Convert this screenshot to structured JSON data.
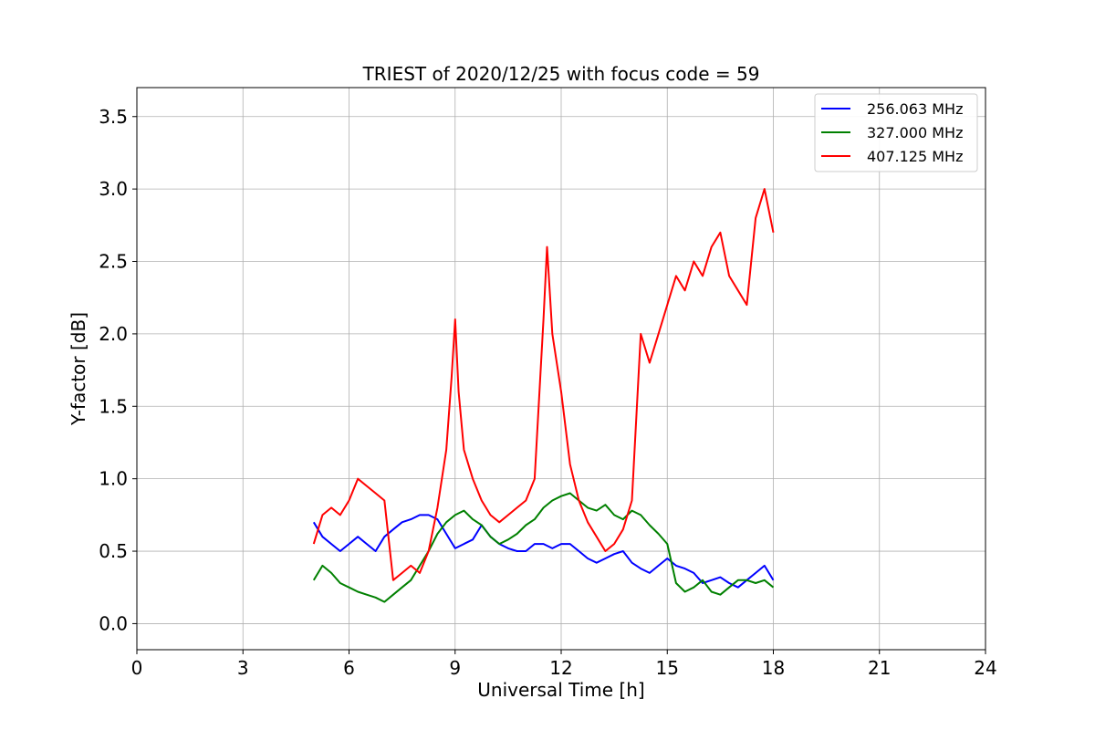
{
  "chart_data": {
    "type": "line",
    "title": "TRIEST of 2020/12/25 with focus code = 59",
    "xlabel": "Universal Time [h]",
    "ylabel": "Y-factor [dB]",
    "xlim": [
      0,
      24
    ],
    "ylim": [
      -0.18,
      3.7
    ],
    "xticks": [
      0,
      3,
      6,
      9,
      12,
      15,
      18,
      21,
      24
    ],
    "xtick_labels": [
      "0",
      "3",
      "6",
      "9",
      "12",
      "15",
      "18",
      "21",
      "24"
    ],
    "yticks": [
      0.0,
      0.5,
      1.0,
      1.5,
      2.0,
      2.5,
      3.0,
      3.5
    ],
    "ytick_labels": [
      "0.0",
      "0.5",
      "1.0",
      "1.5",
      "2.0",
      "2.5",
      "3.0",
      "3.5"
    ],
    "grid": true,
    "legend_position": "top-right",
    "series": [
      {
        "name": "256.063 MHz",
        "color": "#0000ff",
        "x": [
          5.0,
          5.25,
          5.5,
          5.75,
          6.0,
          6.25,
          6.5,
          6.75,
          7.0,
          7.25,
          7.5,
          7.75,
          8.0,
          8.25,
          8.5,
          8.75,
          9.0,
          9.25,
          9.5,
          9.75,
          10.0,
          10.25,
          10.5,
          10.75,
          11.0,
          11.25,
          11.5,
          11.75,
          12.0,
          12.25,
          12.5,
          12.75,
          13.0,
          13.25,
          13.5,
          13.75,
          14.0,
          14.25,
          14.5,
          14.75,
          15.0,
          15.25,
          15.5,
          15.75,
          16.0,
          16.25,
          16.5,
          16.75,
          17.0,
          17.25,
          17.5,
          17.75,
          18.0
        ],
        "y": [
          0.7,
          0.6,
          0.55,
          0.5,
          0.55,
          0.6,
          0.55,
          0.5,
          0.6,
          0.65,
          0.7,
          0.72,
          0.75,
          0.75,
          0.72,
          0.62,
          0.52,
          0.55,
          0.58,
          0.68,
          0.6,
          0.55,
          0.52,
          0.5,
          0.5,
          0.55,
          0.55,
          0.52,
          0.55,
          0.55,
          0.5,
          0.45,
          0.42,
          0.45,
          0.48,
          0.5,
          0.42,
          0.38,
          0.35,
          0.4,
          0.45,
          0.4,
          0.38,
          0.35,
          0.28,
          0.3,
          0.32,
          0.28,
          0.25,
          0.3,
          0.35,
          0.4,
          0.3
        ]
      },
      {
        "name": "327.000 MHz",
        "color": "#008000",
        "x": [
          5.0,
          5.25,
          5.5,
          5.75,
          6.0,
          6.25,
          6.5,
          6.75,
          7.0,
          7.25,
          7.5,
          7.75,
          8.0,
          8.25,
          8.5,
          8.75,
          9.0,
          9.25,
          9.5,
          9.75,
          10.0,
          10.25,
          10.5,
          10.75,
          11.0,
          11.25,
          11.5,
          11.75,
          12.0,
          12.25,
          12.5,
          12.75,
          13.0,
          13.25,
          13.5,
          13.75,
          14.0,
          14.25,
          14.5,
          14.75,
          15.0,
          15.25,
          15.5,
          15.75,
          16.0,
          16.25,
          16.5,
          16.75,
          17.0,
          17.25,
          17.5,
          17.75,
          18.0
        ],
        "y": [
          0.3,
          0.4,
          0.35,
          0.28,
          0.25,
          0.22,
          0.2,
          0.18,
          0.15,
          0.2,
          0.25,
          0.3,
          0.4,
          0.5,
          0.62,
          0.7,
          0.75,
          0.78,
          0.72,
          0.68,
          0.6,
          0.55,
          0.58,
          0.62,
          0.68,
          0.72,
          0.8,
          0.85,
          0.88,
          0.9,
          0.85,
          0.8,
          0.78,
          0.82,
          0.75,
          0.72,
          0.78,
          0.75,
          0.68,
          0.62,
          0.55,
          0.28,
          0.22,
          0.25,
          0.3,
          0.22,
          0.2,
          0.25,
          0.3,
          0.3,
          0.28,
          0.3,
          0.25
        ]
      },
      {
        "name": "407.125 MHz",
        "color": "#ff0000",
        "x": [
          5.0,
          5.25,
          5.5,
          5.75,
          6.0,
          6.25,
          6.5,
          6.75,
          7.0,
          7.25,
          7.5,
          7.75,
          8.0,
          8.25,
          8.5,
          8.75,
          8.9,
          9.0,
          9.1,
          9.25,
          9.5,
          9.75,
          10.0,
          10.25,
          10.5,
          10.75,
          11.0,
          11.25,
          11.5,
          11.6,
          11.75,
          12.0,
          12.25,
          12.5,
          12.75,
          13.0,
          13.25,
          13.5,
          13.75,
          14.0,
          14.25,
          14.5,
          14.75,
          15.0,
          15.25,
          15.5,
          15.75,
          16.0,
          16.25,
          16.5,
          16.75,
          17.0,
          17.25,
          17.5,
          17.75,
          18.0
        ],
        "y": [
          0.55,
          0.75,
          0.8,
          0.75,
          0.85,
          1.0,
          0.95,
          0.9,
          0.85,
          0.3,
          0.35,
          0.4,
          0.35,
          0.5,
          0.8,
          1.2,
          1.7,
          2.1,
          1.6,
          1.2,
          1.0,
          0.85,
          0.75,
          0.7,
          0.75,
          0.8,
          0.85,
          1.0,
          2.1,
          2.6,
          2.0,
          1.6,
          1.1,
          0.85,
          0.7,
          0.6,
          0.5,
          0.55,
          0.65,
          0.85,
          2.0,
          1.8,
          2.0,
          2.2,
          2.4,
          2.3,
          2.5,
          2.4,
          2.6,
          2.7,
          2.4,
          2.3,
          2.2,
          2.8,
          3.0,
          2.7
        ]
      }
    ]
  }
}
